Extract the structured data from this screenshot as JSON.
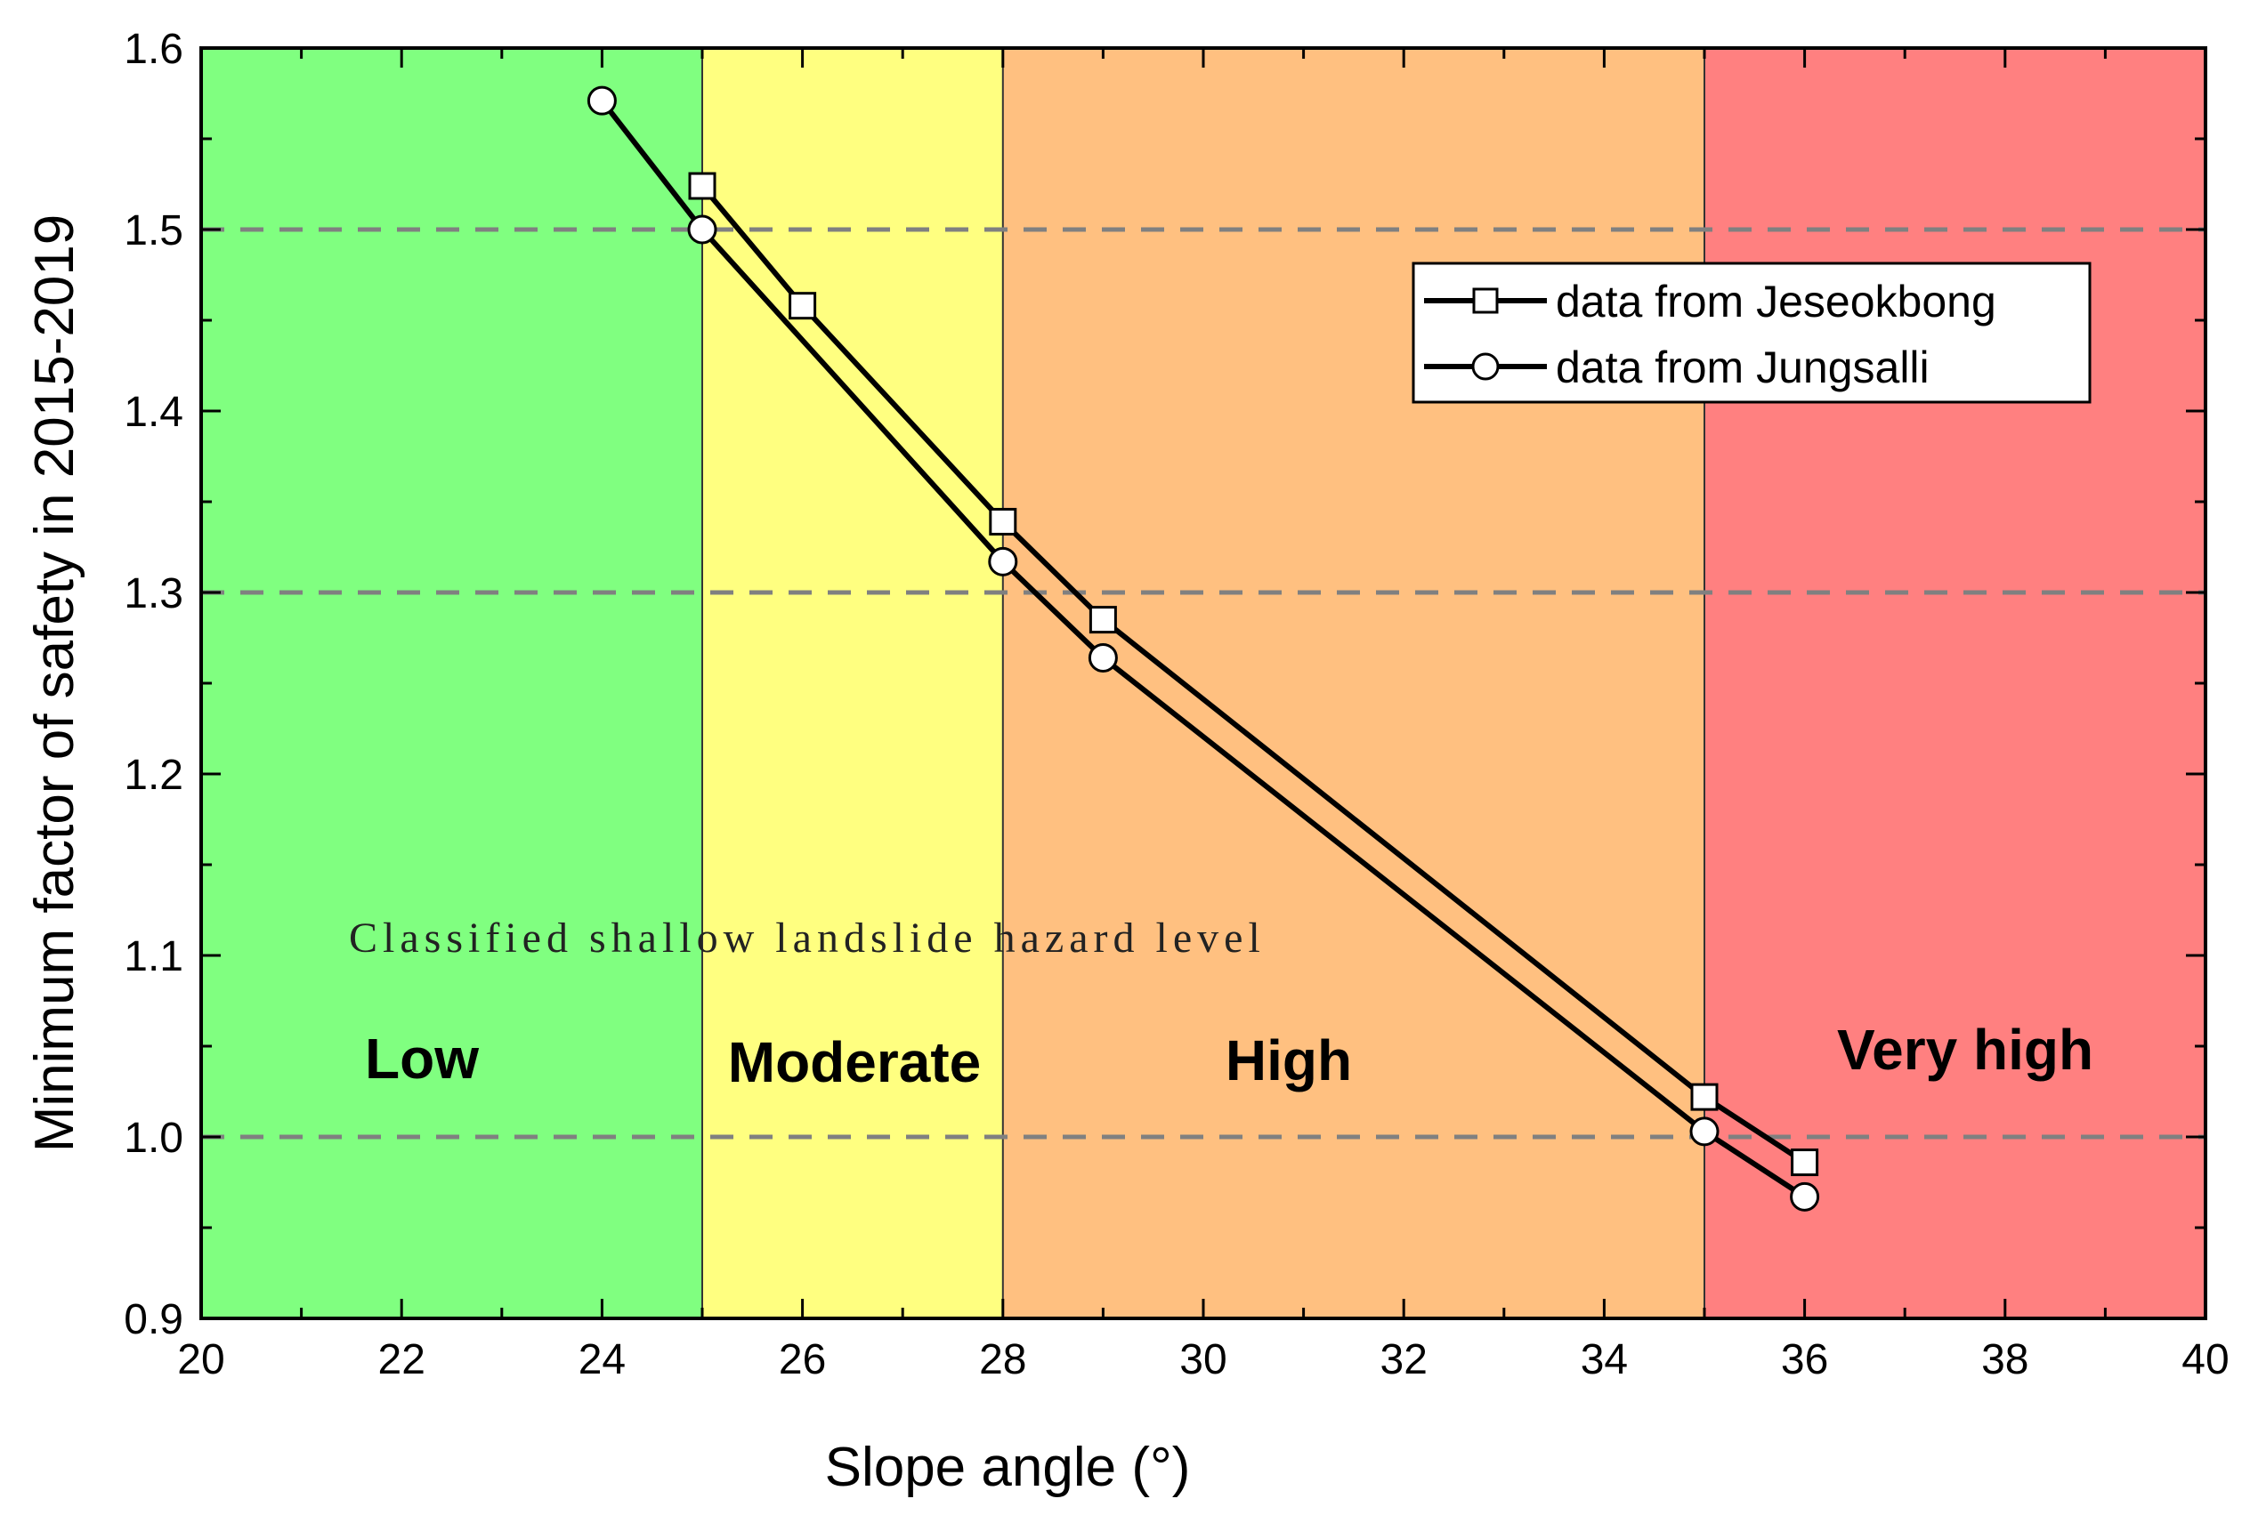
{
  "chart_data": {
    "type": "line",
    "title": "",
    "xlabel": "Slope angle (°)",
    "ylabel": "Minimum factor of safety in 2015-2019",
    "xlim": [
      20,
      40
    ],
    "ylim": [
      0.9,
      1.6
    ],
    "x_ticks": [
      20,
      22,
      24,
      26,
      28,
      30,
      32,
      34,
      36,
      38,
      40
    ],
    "x_tick_labels": [
      "20",
      "22",
      "24",
      "26",
      "28",
      "30",
      "32",
      "34",
      "36",
      "38",
      "40"
    ],
    "y_ticks": [
      0.9,
      1.0,
      1.1,
      1.2,
      1.3,
      1.4,
      1.5,
      1.6
    ],
    "y_tick_labels": [
      "0.9",
      "1.0",
      "1.1",
      "1.2",
      "1.3",
      "1.4",
      "1.5",
      "1.6"
    ],
    "reference_lines_y": [
      1.0,
      1.3,
      1.5
    ],
    "annotation": "Classified shallow landslide hazard level",
    "zones": [
      {
        "name": "Low",
        "from": 20,
        "to": 25,
        "color": "#80FF80"
      },
      {
        "name": "Moderate",
        "from": 25,
        "to": 28,
        "color": "#FFFF80"
      },
      {
        "name": "High",
        "from": 28,
        "to": 35,
        "color": "#FFC080"
      },
      {
        "name": "Very high",
        "from": 35,
        "to": 40,
        "color": "#FF8080"
      }
    ],
    "legend_position": "top-right",
    "series": [
      {
        "name": "data from Jeseokbong",
        "marker": "square",
        "x": [
          25,
          26,
          28,
          29,
          35,
          36
        ],
        "y": [
          1.524,
          1.458,
          1.339,
          1.285,
          1.022,
          0.986
        ]
      },
      {
        "name": "data from Jungsalli",
        "marker": "circle",
        "x": [
          24,
          25,
          28,
          29,
          35,
          36
        ],
        "y": [
          1.571,
          1.5,
          1.317,
          1.264,
          1.003,
          0.967
        ]
      }
    ]
  }
}
